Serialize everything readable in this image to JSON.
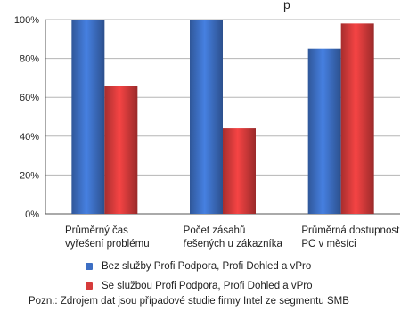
{
  "title_fragment": "p",
  "chart_data": {
    "type": "bar",
    "categories": [
      [
        "Průměrný čas",
        "vyřešení problému"
      ],
      [
        "Počet zásahů",
        "řešených u zákazníka"
      ],
      [
        "Průměrná dostupnost",
        "PC v měsíci"
      ]
    ],
    "y_ticks": [
      "0%",
      "20%",
      "40%",
      "60%",
      "80%",
      "100%"
    ],
    "ylim": [
      0,
      100
    ],
    "grid": "horizontal",
    "series": [
      {
        "name": "Bez služby Profi Podpora, Profi Dohled a vPro",
        "color": "#3d6fc4",
        "values": [
          100,
          100,
          85
        ]
      },
      {
        "name": "Se službou Profi Podpora, Profi Dohled a vPro",
        "color": "#d63b3b",
        "values": [
          66,
          44,
          98
        ]
      }
    ],
    "legend_position": "bottom"
  },
  "note": "Pozn.: Zdrojem dat jsou případové studie firmy Intel ze segmentu SMB"
}
